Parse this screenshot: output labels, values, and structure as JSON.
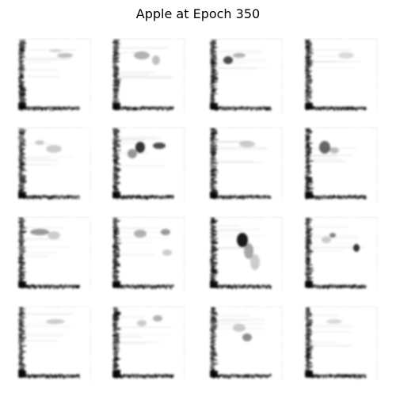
{
  "figure": {
    "title": "Apple at Epoch 350"
  },
  "samples": [
    {
      "blobs": [
        [
          62,
          22,
          10,
          3,
          0.25
        ],
        [
          50,
          16,
          8,
          2,
          0.15
        ]
      ]
    },
    {
      "blobs": [
        [
          40,
          22,
          10,
          5,
          0.3
        ],
        [
          58,
          28,
          5,
          6,
          0.25
        ]
      ]
    },
    {
      "blobs": [
        [
          26,
          28,
          6,
          5,
          0.7
        ],
        [
          40,
          22,
          8,
          3,
          0.3
        ]
      ]
    },
    {
      "blobs": [
        [
          55,
          22,
          10,
          4,
          0.15
        ]
      ]
    },
    {
      "blobs": [
        [
          48,
          28,
          10,
          5,
          0.2
        ],
        [
          30,
          20,
          6,
          3,
          0.2
        ]
      ]
    },
    {
      "blobs": [
        [
          38,
          26,
          6,
          7,
          0.8
        ],
        [
          62,
          24,
          8,
          4,
          0.7
        ],
        [
          28,
          34,
          6,
          6,
          0.4
        ]
      ]
    },
    {
      "blobs": [
        [
          50,
          22,
          10,
          4,
          0.2
        ]
      ]
    },
    {
      "blobs": [
        [
          28,
          26,
          7,
          8,
          0.6
        ],
        [
          40,
          30,
          6,
          4,
          0.25
        ]
      ]
    },
    {
      "blobs": [
        [
          30,
          20,
          12,
          4,
          0.4
        ],
        [
          48,
          24,
          8,
          5,
          0.2
        ]
      ]
    },
    {
      "blobs": [
        [
          38,
          22,
          8,
          5,
          0.3
        ],
        [
          70,
          20,
          6,
          4,
          0.4
        ],
        [
          72,
          46,
          6,
          4,
          0.2
        ]
      ]
    },
    {
      "blobs": [
        [
          44,
          30,
          7,
          9,
          0.9
        ],
        [
          52,
          44,
          6,
          10,
          0.35
        ],
        [
          60,
          58,
          6,
          10,
          0.2
        ]
      ]
    },
    {
      "blobs": [
        [
          38,
          24,
          4,
          3,
          0.5
        ],
        [
          68,
          40,
          4,
          5,
          0.8
        ],
        [
          30,
          30,
          6,
          4,
          0.2
        ]
      ]
    },
    {
      "blobs": [
        [
          50,
          20,
          12,
          3,
          0.2
        ]
      ]
    },
    {
      "blobs": [
        [
          60,
          16,
          6,
          4,
          0.3
        ],
        [
          40,
          22,
          6,
          4,
          0.2
        ]
      ]
    },
    {
      "blobs": [
        [
          50,
          40,
          6,
          5,
          0.45
        ],
        [
          40,
          28,
          8,
          5,
          0.2
        ]
      ]
    },
    {
      "blobs": [
        [
          40,
          20,
          10,
          3,
          0.15
        ]
      ]
    }
  ]
}
